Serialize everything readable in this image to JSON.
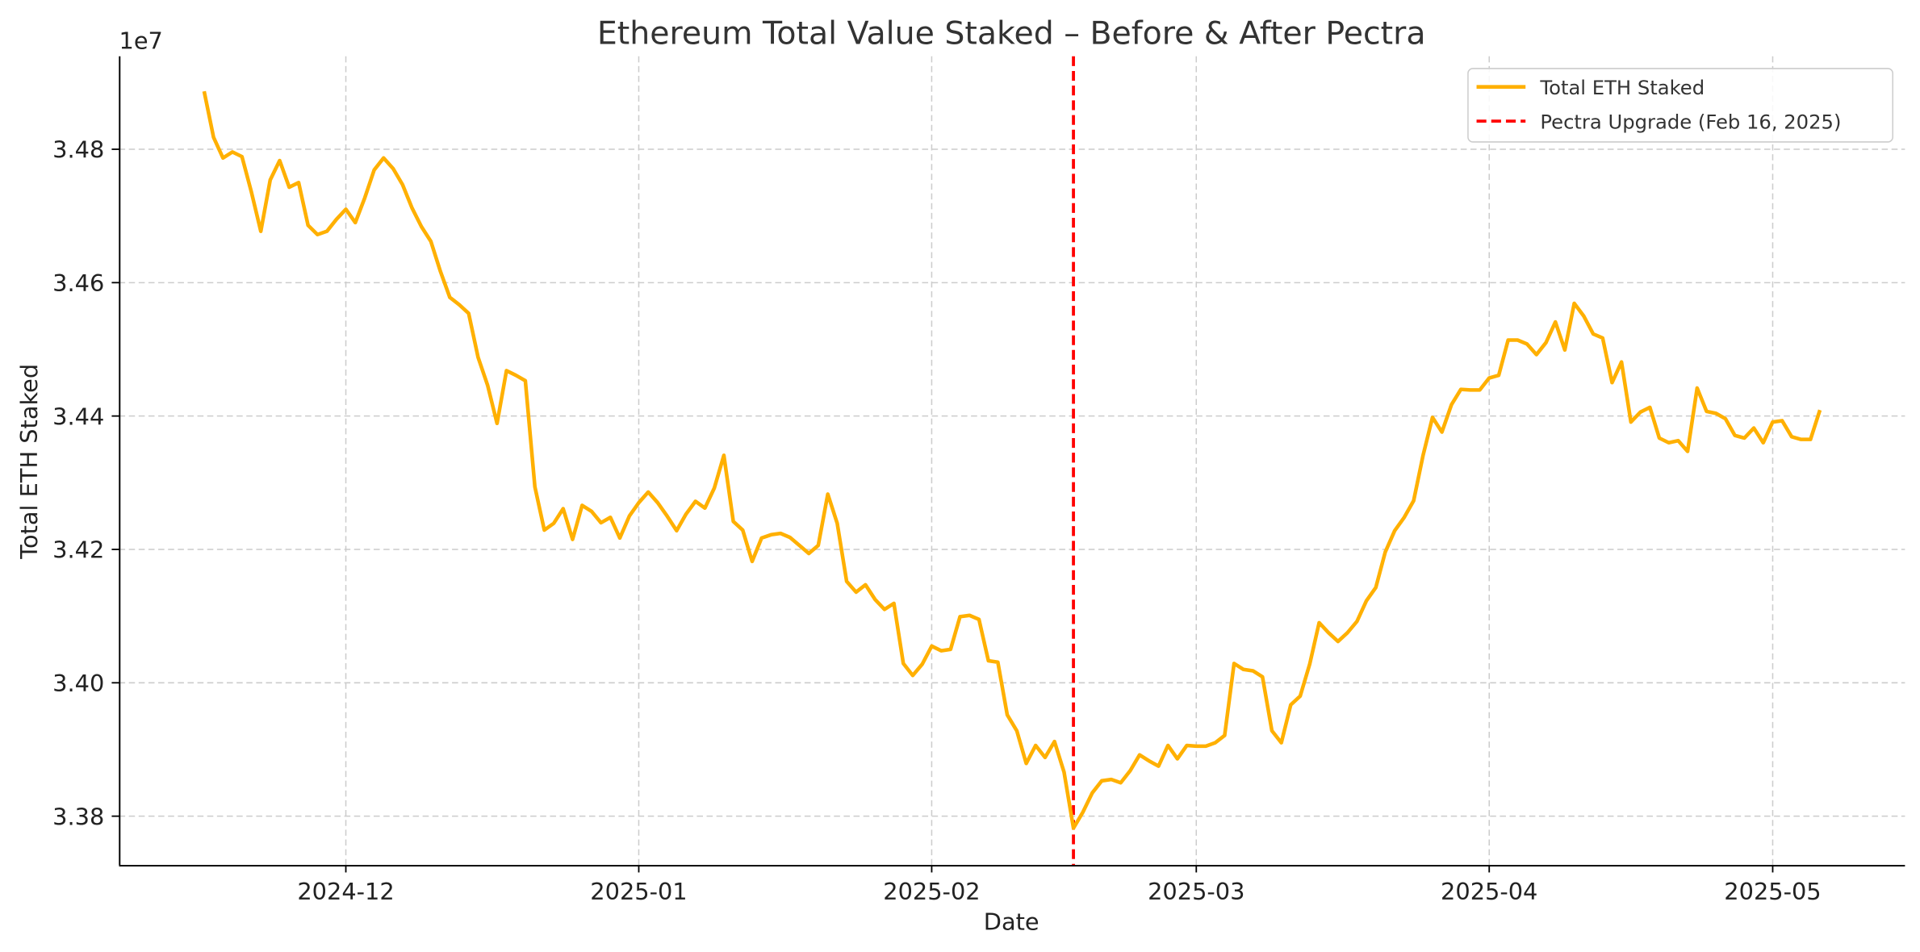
{
  "chart_data": {
    "type": "line",
    "title": "Ethereum Total Value Staked – Before & After Pectra",
    "xlabel": "Date",
    "ylabel": "Total ETH Staked",
    "y_offset_label": "1e7",
    "xlim": [
      "2024-11-07",
      "2025-05-15"
    ],
    "ylim": [
      33726600,
      34939400
    ],
    "x_ticks": [
      "2024-12",
      "2025-01",
      "2025-02",
      "2025-03",
      "2025-04",
      "2025-05"
    ],
    "y_ticks": [
      "3.38",
      "3.40",
      "3.42",
      "3.44",
      "3.46",
      "3.48"
    ],
    "y_tick_values": [
      33800000,
      34000000,
      34200000,
      34400000,
      34600000,
      34800000
    ],
    "grid": true,
    "legend_placement": "top-right",
    "series": [
      {
        "name": "Total ETH Staked",
        "color": "#FFB000",
        "x": [
          "2024-11-16",
          "2024-11-17",
          "2024-11-18",
          "2024-11-19",
          "2024-11-20",
          "2024-11-21",
          "2024-11-22",
          "2024-11-23",
          "2024-11-24",
          "2024-11-25",
          "2024-11-26",
          "2024-11-27",
          "2024-11-28",
          "2024-11-29",
          "2024-11-30",
          "2024-12-01",
          "2024-12-02",
          "2024-12-03",
          "2024-12-04",
          "2024-12-05",
          "2024-12-06",
          "2024-12-07",
          "2024-12-08",
          "2024-12-09",
          "2024-12-10",
          "2024-12-11",
          "2024-12-12",
          "2024-12-13",
          "2024-12-14",
          "2024-12-15",
          "2024-12-16",
          "2024-12-17",
          "2024-12-18",
          "2024-12-19",
          "2024-12-20",
          "2024-12-21",
          "2024-12-22",
          "2024-12-23",
          "2024-12-24",
          "2024-12-25",
          "2024-12-26",
          "2024-12-27",
          "2024-12-28",
          "2024-12-29",
          "2024-12-30",
          "2024-12-31",
          "2025-01-01",
          "2025-01-02",
          "2025-01-03",
          "2025-01-04",
          "2025-01-05",
          "2025-01-06",
          "2025-01-07",
          "2025-01-08",
          "2025-01-09",
          "2025-01-10",
          "2025-01-11",
          "2025-01-12",
          "2025-01-13",
          "2025-01-14",
          "2025-01-15",
          "2025-01-16",
          "2025-01-17",
          "2025-01-18",
          "2025-01-19",
          "2025-01-20",
          "2025-01-21",
          "2025-01-22",
          "2025-01-23",
          "2025-01-24",
          "2025-01-25",
          "2025-01-26",
          "2025-01-27",
          "2025-01-28",
          "2025-01-29",
          "2025-01-30",
          "2025-01-31",
          "2025-02-01",
          "2025-02-02",
          "2025-02-03",
          "2025-02-04",
          "2025-02-05",
          "2025-02-06",
          "2025-02-07",
          "2025-02-08",
          "2025-02-09",
          "2025-02-10",
          "2025-02-11",
          "2025-02-12",
          "2025-02-13",
          "2025-02-14",
          "2025-02-15",
          "2025-02-16",
          "2025-02-17",
          "2025-02-18",
          "2025-02-19",
          "2025-02-20",
          "2025-02-21",
          "2025-02-22",
          "2025-02-23",
          "2025-02-24",
          "2025-02-25",
          "2025-02-26",
          "2025-02-27",
          "2025-02-28",
          "2025-03-01",
          "2025-03-02",
          "2025-03-03",
          "2025-03-04",
          "2025-03-05",
          "2025-03-06",
          "2025-03-07",
          "2025-03-08",
          "2025-03-09",
          "2025-03-10",
          "2025-03-11",
          "2025-03-12",
          "2025-03-13",
          "2025-03-14",
          "2025-03-15",
          "2025-03-16",
          "2025-03-17",
          "2025-03-18",
          "2025-03-19",
          "2025-03-20",
          "2025-03-21",
          "2025-03-22",
          "2025-03-23",
          "2025-03-24",
          "2025-03-25",
          "2025-03-26",
          "2025-03-27",
          "2025-03-28",
          "2025-03-29",
          "2025-03-30",
          "2025-03-31",
          "2025-04-01",
          "2025-04-02",
          "2025-04-03",
          "2025-04-04",
          "2025-04-05",
          "2025-04-06",
          "2025-04-07",
          "2025-04-08",
          "2025-04-09",
          "2025-04-10",
          "2025-04-11",
          "2025-04-12",
          "2025-04-13",
          "2025-04-14",
          "2025-04-15",
          "2025-04-16",
          "2025-04-17",
          "2025-04-18",
          "2025-04-19",
          "2025-04-20",
          "2025-04-21",
          "2025-04-22",
          "2025-04-23",
          "2025-04-24",
          "2025-04-25",
          "2025-04-26",
          "2025-04-27",
          "2025-04-28",
          "2025-04-29",
          "2025-04-30",
          "2025-05-01",
          "2025-05-02",
          "2025-05-03",
          "2025-05-04",
          "2025-05-05",
          "2025-05-06"
        ],
        "values": [
          34887000,
          34818000,
          34787000,
          34796000,
          34789000,
          34736000,
          34677000,
          34754000,
          34783000,
          34743000,
          34750000,
          34686000,
          34672000,
          34677000,
          34695000,
          34710000,
          34690000,
          34727000,
          34769000,
          34787000,
          34771000,
          34747000,
          34712000,
          34684000,
          34662000,
          34617000,
          34578000,
          34567000,
          34554000,
          34488000,
          34446000,
          34389000,
          34468000,
          34461000,
          34453000,
          34294000,
          34229000,
          34239000,
          34261000,
          34215000,
          34266000,
          34257000,
          34240000,
          34248000,
          34217000,
          34250000,
          34270000,
          34286000,
          34270000,
          34250000,
          34228000,
          34253000,
          34272000,
          34262000,
          34292000,
          34341000,
          34242000,
          34229000,
          34182000,
          34217000,
          34222000,
          34224000,
          34218000,
          34206000,
          34194000,
          34206000,
          34283000,
          34239000,
          34152000,
          34136000,
          34147000,
          34125000,
          34110000,
          34119000,
          34029000,
          34011000,
          34028000,
          34055000,
          34048000,
          34050000,
          34099000,
          34101000,
          34095000,
          34033000,
          34031000,
          33952000,
          33928000,
          33879000,
          33906000,
          33888000,
          33912000,
          33866000,
          33782000,
          33806000,
          33835000,
          33853000,
          33855000,
          33850000,
          33868000,
          33892000,
          33883000,
          33875000,
          33906000,
          33886000,
          33906000,
          33905000,
          33905000,
          33910000,
          33921000,
          34029000,
          34020000,
          34018000,
          34009000,
          33928000,
          33910000,
          33967000,
          33980000,
          34028000,
          34090000,
          34075000,
          34062000,
          34075000,
          34092000,
          34123000,
          34143000,
          34196000,
          34228000,
          34248000,
          34273000,
          34341000,
          34398000,
          34376000,
          34417000,
          34440000,
          34439000,
          34439000,
          34457000,
          34461000,
          34514000,
          34514000,
          34508000,
          34492000,
          34510000,
          34541000,
          34499000,
          34569000,
          34550000,
          34523000,
          34517000,
          34450000,
          34481000,
          34391000,
          34406000,
          34413000,
          34367000,
          34360000,
          34363000,
          34347000,
          34442000,
          34407000,
          34404000,
          34396000,
          34371000,
          34367000,
          34382000,
          34360000,
          34391000,
          34393000,
          34369000,
          34365000,
          34365000,
          34409000
        ]
      }
    ],
    "annotations": [
      {
        "type": "vline",
        "name": "Pectra Upgrade (Feb 16, 2025)",
        "x": "2025-02-16",
        "color": "#FF0000",
        "style": "dashed"
      }
    ]
  }
}
